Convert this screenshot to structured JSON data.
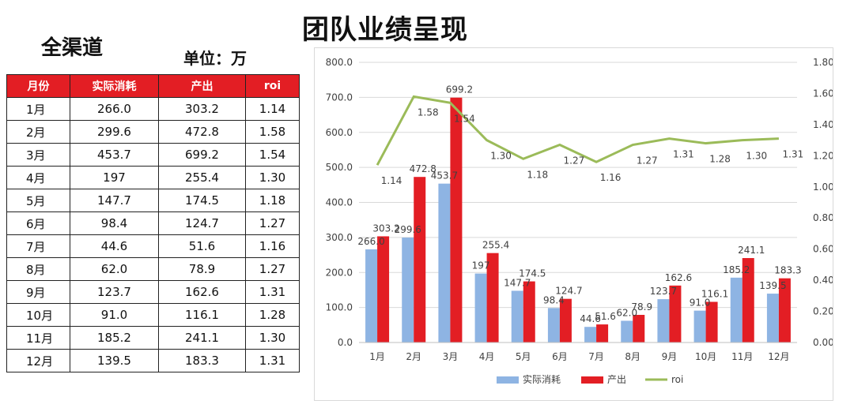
{
  "title": "团队业绩呈现",
  "channel": "全渠道",
  "unit": "单位：万",
  "table": {
    "headers": [
      "月份",
      "实际消耗",
      "产出",
      "roi"
    ],
    "rows": [
      [
        "1月",
        "266.0",
        "303.2",
        "1.14"
      ],
      [
        "2月",
        "299.6",
        "472.8",
        "1.58"
      ],
      [
        "3月",
        "453.7",
        "699.2",
        "1.54"
      ],
      [
        "4月",
        "197",
        "255.4",
        "1.30"
      ],
      [
        "5月",
        "147.7",
        "174.5",
        "1.18"
      ],
      [
        "6月",
        "98.4",
        "124.7",
        "1.27"
      ],
      [
        "7月",
        "44.6",
        "51.6",
        "1.16"
      ],
      [
        "8月",
        "62.0",
        "78.9",
        "1.27"
      ],
      [
        "9月",
        "123.7",
        "162.6",
        "1.31"
      ],
      [
        "10月",
        "91.0",
        "116.1",
        "1.28"
      ],
      [
        "11月",
        "185.2",
        "241.1",
        "1.30"
      ],
      [
        "12月",
        "139.5",
        "183.3",
        "1.31"
      ]
    ]
  },
  "chart_data": {
    "type": "bar",
    "categories": [
      "1月",
      "2月",
      "3月",
      "4月",
      "5月",
      "6月",
      "7月",
      "8月",
      "9月",
      "10月",
      "11月",
      "12月"
    ],
    "series": [
      {
        "name": "实际消耗",
        "type": "bar",
        "axis": "left",
        "color": "#8eb4e3",
        "values": [
          266.0,
          299.6,
          453.7,
          197,
          147.7,
          98.4,
          44.6,
          62.0,
          123.7,
          91.0,
          185.2,
          139.5
        ],
        "labels": [
          "266.0",
          "299.6",
          "453.7",
          "197",
          "147.7",
          "98.4",
          "44.6",
          "62.0",
          "123.7",
          "91.0",
          "185.2",
          "139.5"
        ]
      },
      {
        "name": "产出",
        "type": "bar",
        "axis": "left",
        "color": "#e31e24",
        "values": [
          303.2,
          472.8,
          699.2,
          255.4,
          174.5,
          124.7,
          51.6,
          78.9,
          162.6,
          116.1,
          241.1,
          183.3
        ],
        "labels": [
          "303.2",
          "472.8",
          "699.2",
          "255.4",
          "174.5",
          "124.7",
          "51.6",
          "78.9",
          "162.6",
          "116.1",
          "241.1",
          "183.3"
        ]
      },
      {
        "name": "roi",
        "type": "line",
        "axis": "right",
        "color": "#9bbb59",
        "values": [
          1.14,
          1.58,
          1.54,
          1.3,
          1.18,
          1.27,
          1.16,
          1.27,
          1.31,
          1.28,
          1.3,
          1.31
        ],
        "labels": [
          "1.14",
          "1.58",
          "1.54",
          "1.30",
          "1.18",
          "1.27",
          "1.16",
          "1.27",
          "1.31",
          "1.28",
          "1.30",
          "1.31"
        ]
      }
    ],
    "ylim": [
      0,
      800
    ],
    "y2lim": [
      0,
      1.8
    ],
    "yticks": [
      "0.0",
      "100.0",
      "200.0",
      "300.0",
      "400.0",
      "500.0",
      "600.0",
      "700.0",
      "800.0"
    ],
    "y2ticks": [
      "0.00",
      "0.20",
      "0.40",
      "0.60",
      "0.80",
      "1.00",
      "1.20",
      "1.40",
      "1.60",
      "1.80"
    ],
    "grid": true,
    "legend": "bottom"
  }
}
